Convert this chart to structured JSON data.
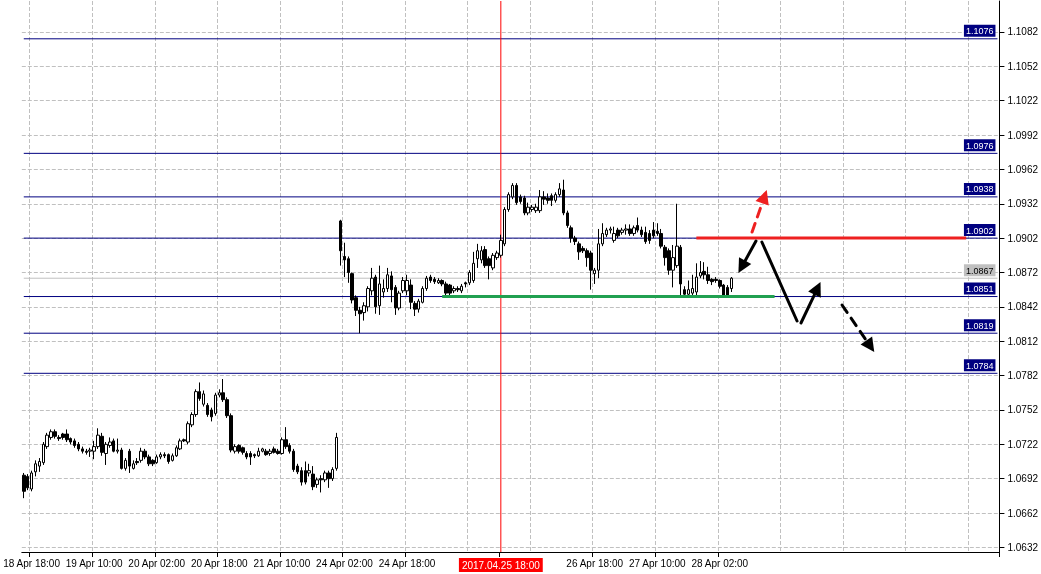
{
  "chart_data": {
    "type": "candlestick",
    "categories": [
      null,
      null,
      "18 Apr 18:00",
      null,
      null,
      null,
      null,
      null,
      null,
      null,
      null,
      null,
      null,
      null,
      null,
      null,
      null,
      null,
      "19 Apr 10:00",
      null,
      null,
      null,
      null,
      null,
      null,
      null,
      null,
      null,
      null,
      null,
      null,
      null,
      null,
      null,
      "20 Apr 02:00",
      null,
      null,
      null,
      null,
      null,
      null,
      null,
      null,
      null,
      null,
      null,
      null,
      null,
      null,
      null,
      "20 Apr 18:00",
      null,
      null,
      null,
      null,
      null,
      null,
      null,
      null,
      null,
      null,
      null,
      null,
      null,
      null,
      null,
      "21 Apr 10:00",
      null,
      null,
      null,
      null,
      null,
      null,
      null,
      null,
      null,
      null,
      null,
      null,
      null,
      null,
      null,
      "24 Apr 02:00",
      null,
      null,
      null,
      null,
      null,
      null,
      null,
      null,
      null,
      null,
      null,
      null,
      null,
      null,
      null,
      "24 Apr 18:00",
      null,
      null,
      null,
      null,
      null,
      null,
      null,
      null,
      null,
      null,
      null,
      null,
      null,
      null,
      null,
      null,
      null,
      null,
      null,
      null,
      null,
      null,
      null,
      "2017.04.25 18:00",
      null,
      null,
      null,
      null,
      null,
      null,
      null,
      null,
      null,
      null,
      null,
      null,
      null,
      null,
      null,
      null,
      null,
      null,
      null,
      null,
      null,
      null,
      null,
      "26 Apr 18:00",
      null,
      null,
      null,
      null,
      null,
      null,
      null,
      null,
      null,
      null,
      null,
      null,
      null,
      null,
      null,
      "27 Apr 10:00",
      null,
      null,
      null,
      null,
      null,
      null,
      null,
      null,
      null,
      null,
      null,
      null,
      null,
      null,
      null,
      "28 Apr 02:00",
      null,
      null,
      null,
      null,
      null,
      null,
      null,
      null,
      null,
      null,
      null,
      null,
      null,
      null,
      null,
      null,
      null,
      null,
      null,
      null,
      null,
      null,
      null,
      null,
      null,
      null,
      null,
      null,
      null,
      null,
      null,
      null,
      null,
      null,
      null,
      null,
      null,
      null,
      null,
      null,
      null,
      null,
      null,
      null,
      null,
      null,
      null,
      null,
      null,
      null,
      null,
      null,
      null,
      null,
      null,
      null,
      null,
      null,
      null,
      null,
      null,
      null,
      null,
      null,
      null,
      null,
      null,
      null,
      null,
      null,
      null
    ],
    "ohlc": [
      [
        1.0695,
        1.0697,
        1.0675,
        1.0681
      ],
      [
        1.0694,
        1.0696,
        1.0682,
        1.0684
      ],
      [
        1.0683,
        1.0699,
        1.0681,
        1.0697
      ],
      [
        1.0698,
        1.0708,
        1.0694,
        1.0705
      ],
      [
        1.0703,
        1.071,
        1.0698,
        1.0707
      ],
      [
        1.0706,
        1.0724,
        1.0704,
        1.0722
      ],
      [
        1.072,
        1.0732,
        1.0718,
        1.073
      ],
      [
        1.0728,
        1.0735,
        1.0726,
        1.0733
      ],
      [
        1.0733,
        1.0735,
        1.0727,
        1.0729
      ],
      [
        1.0728,
        1.073,
        1.0725,
        1.0727
      ],
      [
        1.0731,
        1.0732,
        1.0726,
        1.0728
      ],
      [
        1.0731,
        1.0735,
        1.0724,
        1.0726
      ],
      [
        1.0727,
        1.0728,
        1.0722,
        1.0724
      ],
      [
        1.0725,
        1.0727,
        1.0719,
        1.0721
      ],
      [
        1.0722,
        1.0724,
        1.0716,
        1.0718
      ],
      [
        1.0718,
        1.072,
        1.0714,
        1.0716
      ],
      [
        1.0716,
        1.0718,
        1.0713,
        1.0715
      ],
      [
        1.0716,
        1.0719,
        1.0711,
        1.0717
      ],
      [
        1.0716,
        1.0725,
        1.0709,
        1.072
      ],
      [
        1.072,
        1.0736,
        1.0718,
        1.073
      ],
      [
        1.0729,
        1.0732,
        1.0712,
        1.0715
      ],
      [
        1.0714,
        1.0724,
        1.0704,
        1.0722
      ],
      [
        1.0721,
        1.0728,
        1.0719,
        1.0724
      ],
      [
        1.0725,
        1.0727,
        1.0715,
        1.0716
      ],
      [
        1.0716,
        1.0727,
        1.0714,
        1.0717
      ],
      [
        1.0717,
        1.0719,
        1.07,
        1.0701
      ],
      [
        1.0701,
        1.071,
        1.0699,
        1.0708
      ],
      [
        1.0716,
        1.0718,
        1.0697,
        1.0703
      ],
      [
        1.0701,
        1.0708,
        1.07,
        1.0705
      ],
      [
        1.0707,
        1.071,
        1.0704,
        1.0706
      ],
      [
        1.0708,
        1.0719,
        1.0706,
        1.0716
      ],
      [
        1.0716,
        1.0718,
        1.0709,
        1.0711
      ],
      [
        1.0711,
        1.0713,
        1.0703,
        1.0705
      ],
      [
        1.0708,
        1.0709,
        1.0703,
        1.0705
      ],
      [
        1.0706,
        1.0713,
        1.0705,
        1.0711
      ],
      [
        1.0711,
        1.0715,
        1.0709,
        1.0713
      ],
      [
        1.0713,
        1.0715,
        1.071,
        1.0712
      ],
      [
        1.0713,
        1.0714,
        1.0705,
        1.0707
      ],
      [
        1.0708,
        1.0714,
        1.0707,
        1.0712
      ],
      [
        1.0712,
        1.0721,
        1.0711,
        1.0719
      ],
      [
        1.0718,
        1.0727,
        1.0717,
        1.0725
      ],
      [
        1.0726,
        1.0727,
        1.0724,
        1.0725
      ],
      [
        1.0724,
        1.0742,
        1.0722,
        1.074
      ],
      [
        1.0739,
        1.075,
        1.0737,
        1.0748
      ],
      [
        1.0748,
        1.077,
        1.0746,
        1.0768
      ],
      [
        1.0768,
        1.0776,
        1.076,
        1.0762
      ],
      [
        1.0757,
        1.0769,
        1.0755,
        1.0766
      ],
      [
        1.0756,
        1.0758,
        1.0746,
        1.0748
      ],
      [
        1.0752,
        1.0754,
        1.0742,
        1.0746
      ],
      [
        1.0749,
        1.0767,
        1.0747,
        1.0765
      ],
      [
        1.0765,
        1.077,
        1.0763,
        1.0767
      ],
      [
        1.0767,
        1.0779,
        1.0759,
        1.0761
      ],
      [
        1.0761,
        1.0763,
        1.0745,
        1.0747
      ],
      [
        1.0747,
        1.0749,
        1.0715,
        1.0717
      ],
      [
        1.0716,
        1.0722,
        1.0714,
        1.072
      ],
      [
        1.0721,
        1.0722,
        1.0714,
        1.0716
      ],
      [
        1.0719,
        1.072,
        1.0713,
        1.0715
      ],
      [
        1.0714,
        1.0716,
        1.0709,
        1.0711
      ],
      [
        1.0714,
        1.0716,
        1.0704,
        1.0711
      ],
      [
        1.0713,
        1.0714,
        1.071,
        1.0712
      ],
      [
        1.0712,
        1.0719,
        1.0711,
        1.0716
      ],
      [
        1.0716,
        1.0719,
        1.0715,
        1.0718
      ],
      [
        1.0716,
        1.0718,
        1.0712,
        1.0713
      ],
      [
        1.0714,
        1.0718,
        1.0712,
        1.0716
      ],
      [
        1.0718,
        1.072,
        1.0714,
        1.0715
      ],
      [
        1.0716,
        1.0718,
        1.0713,
        1.0714
      ],
      [
        1.0714,
        1.0728,
        1.0713,
        1.0726
      ],
      [
        1.0726,
        1.0737,
        1.0718,
        1.072
      ],
      [
        1.0721,
        1.0723,
        1.0714,
        1.0716
      ],
      [
        1.0716,
        1.0718,
        1.0698,
        1.07
      ],
      [
        1.0703,
        1.0705,
        1.0696,
        1.0698
      ],
      [
        1.0699,
        1.0702,
        1.0686,
        1.0689
      ],
      [
        1.0699,
        1.0707,
        1.0687,
        1.0689
      ],
      [
        1.0697,
        1.0705,
        1.0694,
        1.0699
      ],
      [
        1.0696,
        1.0703,
        1.0682,
        1.0685
      ],
      [
        1.0687,
        1.0693,
        1.0684,
        1.0691
      ],
      [
        1.0692,
        1.0695,
        1.068,
        1.0691
      ],
      [
        1.0691,
        1.0699,
        1.0689,
        1.0697
      ],
      [
        1.0697,
        1.0699,
        1.0684,
        1.0692
      ],
      [
        1.0692,
        1.0702,
        1.069,
        1.07
      ],
      [
        1.0701,
        1.0732,
        1.0699,
        1.0728
      ],
      [
        1.0917,
        1.0918,
        1.0878,
        1.0891
      ],
      [
        1.0886,
        1.0898,
        1.0868,
        1.0883
      ],
      [
        1.0884,
        1.0886,
        1.0863,
        1.0872
      ],
      [
        1.0871,
        1.0872,
        1.0845,
        1.0848
      ],
      [
        1.085,
        1.0852,
        1.0834,
        1.0839
      ],
      [
        1.0839,
        1.0842,
        1.0819,
        1.0836
      ],
      [
        1.0837,
        1.0846,
        1.083,
        1.0843
      ],
      [
        1.0842,
        1.086,
        1.0838,
        1.0858
      ],
      [
        1.0856,
        1.0876,
        1.0852,
        1.0867
      ],
      [
        1.0868,
        1.087,
        1.0836,
        1.0842
      ],
      [
        1.0843,
        1.0878,
        1.0835,
        1.0862
      ],
      [
        1.0855,
        1.0866,
        1.085,
        1.0858
      ],
      [
        1.0858,
        1.0876,
        1.0855,
        1.087
      ],
      [
        1.0869,
        1.0873,
        1.0846,
        1.0857
      ],
      [
        1.0859,
        1.0861,
        1.0835,
        1.0841
      ],
      [
        1.0841,
        1.0856,
        1.0839,
        1.0854
      ],
      [
        1.0856,
        1.0868,
        1.0854,
        1.0865
      ],
      [
        1.0856,
        1.087,
        1.0852,
        1.0865
      ],
      [
        1.0861,
        1.0866,
        1.084,
        1.0846
      ],
      [
        1.0845,
        1.0847,
        1.0834,
        1.084
      ],
      [
        1.084,
        1.0849,
        1.0837,
        1.0847
      ],
      [
        1.0846,
        1.086,
        1.0845,
        1.0858
      ],
      [
        1.0858,
        1.0869,
        1.0856,
        1.0867
      ],
      [
        1.0868,
        1.087,
        1.0863,
        1.0865
      ],
      [
        1.0866,
        1.0868,
        1.0862,
        1.0864
      ],
      [
        1.0863,
        1.0867,
        1.0862,
        1.0865
      ],
      [
        1.0865,
        1.0866,
        1.086,
        1.0862
      ],
      [
        1.0862,
        1.0864,
        1.0852,
        1.0854
      ],
      [
        1.0861,
        1.0862,
        1.0851,
        1.0854
      ],
      [
        1.0856,
        1.086,
        1.0854,
        1.0858
      ],
      [
        1.0858,
        1.086,
        1.0855,
        1.0857
      ],
      [
        1.0856,
        1.0862,
        1.0854,
        1.086
      ],
      [
        1.0863,
        1.0864,
        1.0859,
        1.0862
      ],
      [
        1.0863,
        1.0874,
        1.0861,
        1.0872
      ],
      [
        1.0865,
        1.089,
        1.0863,
        1.088
      ],
      [
        1.0884,
        1.0897,
        1.0876,
        1.0891
      ],
      [
        1.0883,
        1.0895,
        1.088,
        1.0891
      ],
      [
        1.0892,
        1.0895,
        1.0876,
        1.0878
      ],
      [
        1.0884,
        1.0886,
        1.0866,
        1.0878
      ],
      [
        1.0876,
        1.0889,
        1.0874,
        1.0887
      ],
      [
        1.0885,
        1.0891,
        1.0883,
        1.0889
      ],
      [
        1.0887,
        1.0905,
        1.0885,
        1.09
      ],
      [
        1.0897,
        1.0929,
        1.0895,
        1.0927
      ],
      [
        1.0927,
        1.0942,
        1.0925,
        1.094
      ],
      [
        1.0938,
        1.095,
        1.0936,
        1.0948
      ],
      [
        1.0948,
        1.095,
        1.0931,
        1.0933
      ],
      [
        1.0938,
        1.094,
        1.0932,
        1.0934
      ],
      [
        1.0937,
        1.0939,
        1.0922,
        1.0924
      ],
      [
        1.0924,
        1.0933,
        1.0922,
        1.0929
      ],
      [
        1.0927,
        1.0931,
        1.0925,
        1.0929
      ],
      [
        1.0926,
        1.0932,
        1.0924,
        1.0929
      ],
      [
        1.0926,
        1.0944,
        1.0924,
        1.0938
      ],
      [
        1.0938,
        1.0943,
        1.0931,
        1.0936
      ],
      [
        1.0937,
        1.0941,
        1.0932,
        1.0935
      ],
      [
        1.0939,
        1.0941,
        1.093,
        1.0935
      ],
      [
        1.0935,
        1.0942,
        1.0933,
        1.094
      ],
      [
        1.094,
        1.095,
        1.0938,
        1.0945
      ],
      [
        1.0944,
        1.0953,
        1.0922,
        1.0924
      ],
      [
        1.0924,
        1.0926,
        1.0911,
        1.0913
      ],
      [
        1.0911,
        1.0913,
        1.0898,
        1.0902
      ],
      [
        1.0902,
        1.0904,
        1.0896,
        1.0899
      ],
      [
        1.0897,
        1.0899,
        1.0883,
        1.089
      ],
      [
        1.0893,
        1.0895,
        1.0889,
        1.0891
      ],
      [
        1.0891,
        1.0893,
        1.0877,
        1.0885
      ],
      [
        1.0889,
        1.0891,
        1.0857,
        1.0874
      ],
      [
        1.0871,
        1.0876,
        1.0862,
        1.0874
      ],
      [
        1.0874,
        1.091,
        1.0867,
        1.0897
      ],
      [
        1.0897,
        1.0915,
        1.0895,
        1.0906
      ],
      [
        1.0905,
        1.0911,
        1.0903,
        1.0909
      ],
      [
        1.0909,
        1.0912,
        1.0906,
        1.091
      ],
      [
        1.09,
        1.0912,
        1.0898,
        1.0906
      ],
      [
        1.0909,
        1.0911,
        1.0902,
        1.0904
      ],
      [
        1.0907,
        1.0911,
        1.0905,
        1.0909
      ],
      [
        1.0909,
        1.0914,
        1.0905,
        1.091
      ],
      [
        1.091,
        1.0914,
        1.0904,
        1.0906
      ],
      [
        1.0906,
        1.0913,
        1.0904,
        1.0911
      ],
      [
        1.0913,
        1.092,
        1.0907,
        1.0909
      ],
      [
        1.0909,
        1.0912,
        1.0903,
        1.0905
      ],
      [
        1.0907,
        1.0912,
        1.0897,
        1.0899
      ],
      [
        1.0906,
        1.0909,
        1.0897,
        1.09
      ],
      [
        1.0909,
        1.0916,
        1.0902,
        1.0904
      ],
      [
        1.0908,
        1.0915,
        1.0904,
        1.0906
      ],
      [
        1.0906,
        1.091,
        1.0893,
        1.0895
      ],
      [
        1.0894,
        1.0896,
        1.0878,
        1.0885
      ],
      [
        1.0891,
        1.0893,
        1.087,
        1.0874
      ],
      [
        1.0874,
        1.0896,
        1.0859,
        1.0885
      ],
      [
        1.0878,
        1.0932,
        1.0876,
        1.0895
      ],
      [
        1.0894,
        1.0896,
        1.0851,
        1.0862
      ],
      [
        1.0857,
        1.086,
        1.0851,
        1.0853
      ],
      [
        1.0853,
        1.0865,
        1.0851,
        1.0857
      ],
      [
        1.0854,
        1.087,
        1.0852,
        1.0858
      ],
      [
        1.0855,
        1.088,
        1.0852,
        1.0868
      ],
      [
        1.0869,
        1.0882,
        1.0867,
        1.0872
      ],
      [
        1.0873,
        1.0881,
        1.0866,
        1.087
      ],
      [
        1.087,
        1.0877,
        1.0862,
        1.0865
      ],
      [
        1.0866,
        1.0867,
        1.0861,
        1.0864
      ],
      [
        1.0866,
        1.0868,
        1.0863,
        1.0865
      ],
      [
        1.0865,
        1.0866,
        1.0858,
        1.086
      ],
      [
        1.0861,
        1.0862,
        1.085,
        1.0852
      ],
      [
        1.0859,
        1.0861,
        1.085,
        1.0852
      ],
      [
        1.0858,
        1.0868,
        1.0855,
        1.0867
      ],
      null,
      null,
      null,
      null,
      null,
      null,
      null,
      null,
      null,
      null,
      null,
      null,
      null,
      null,
      null,
      null,
      null,
      null,
      null,
      null,
      null,
      null,
      null,
      null,
      null,
      null,
      null,
      null,
      null,
      null,
      null,
      null,
      null,
      null,
      null,
      null,
      null,
      null,
      null,
      null,
      null,
      null,
      null,
      null,
      null,
      null,
      null,
      null,
      null,
      null,
      null,
      null,
      null,
      null,
      null,
      null,
      null,
      null,
      null,
      null,
      null,
      null,
      null,
      null,
      null,
      null,
      null,
      null
    ],
    "series": [
      {
        "type": "line",
        "color": "#ee2020",
        "values": [
          null,
          null,
          null,
          null,
          null,
          null,
          null,
          null,
          null,
          null,
          null,
          null,
          null,
          null,
          null,
          null,
          null,
          null,
          null,
          null,
          null,
          null,
          null,
          null,
          null,
          null,
          null,
          null,
          null,
          null,
          null,
          null,
          null,
          null,
          null,
          null,
          null,
          null,
          null,
          null,
          null,
          null,
          null,
          null,
          null,
          null,
          null,
          null,
          null,
          null,
          null,
          null,
          null,
          null,
          null,
          null,
          null,
          null,
          null,
          null,
          null,
          null,
          null,
          null,
          null,
          null,
          null,
          null,
          null,
          null,
          null,
          null,
          null,
          null,
          null,
          null,
          null,
          null,
          null,
          null,
          null,
          null,
          null,
          null,
          null,
          null,
          null,
          null,
          null,
          null,
          null,
          null,
          null,
          null,
          null,
          null,
          null,
          null,
          null,
          null,
          null,
          null,
          null,
          null,
          null,
          null,
          null,
          null,
          null,
          null,
          null,
          null,
          null,
          null,
          null,
          null,
          null,
          null,
          null,
          null,
          null,
          null,
          null,
          null,
          null,
          null,
          null,
          null,
          null,
          null,
          null,
          null,
          null,
          null,
          null,
          null,
          null,
          null,
          null,
          null,
          null,
          null,
          null,
          null,
          null,
          null,
          null,
          null,
          null,
          null,
          null,
          null,
          null,
          null,
          null,
          null,
          null,
          null,
          null,
          null,
          null,
          null,
          null,
          null,
          null,
          null,
          null,
          null,
          null,
          null,
          null,
          null,
          1.0902,
          1.0902,
          1.0902,
          1.0902,
          1.0902,
          1.0902,
          1.0902,
          1.0902,
          1.0902,
          1.0902,
          1.0902,
          1.0902,
          1.0902,
          1.0902,
          1.0902,
          1.0902,
          1.0902,
          1.0902,
          1.0902,
          1.0902,
          1.0902,
          1.0902,
          1.0902,
          1.0902,
          1.0902,
          1.0902,
          1.0902,
          1.0902,
          1.0902,
          1.0902,
          1.0902,
          1.0902,
          1.0902,
          1.0902,
          1.0902,
          1.0902,
          1.0902,
          1.0902,
          1.0902,
          1.0902,
          1.0902,
          1.0902,
          1.0902,
          1.0902,
          1.0902,
          1.0902,
          1.0902,
          1.0902,
          1.0902,
          1.0902,
          1.0902,
          1.0902,
          1.0902,
          1.0902,
          1.0902,
          1.0902,
          1.0902,
          1.0902,
          1.0902,
          1.0902,
          1.0902,
          1.0902,
          1.0902,
          1.0902,
          1.0902,
          1.0902,
          1.0902,
          1.0902,
          1.0902,
          1.0902,
          null,
          null,
          null,
          null,
          null,
          null,
          null,
          null
        ]
      },
      {
        "type": "line",
        "color": "#20a050",
        "values": [
          null,
          null,
          null,
          null,
          null,
          null,
          null,
          null,
          null,
          null,
          null,
          null,
          null,
          null,
          null,
          null,
          null,
          null,
          null,
          null,
          null,
          null,
          null,
          null,
          null,
          null,
          null,
          null,
          null,
          null,
          null,
          null,
          null,
          null,
          null,
          null,
          null,
          null,
          null,
          null,
          null,
          null,
          null,
          null,
          null,
          null,
          null,
          null,
          null,
          null,
          null,
          null,
          null,
          null,
          null,
          null,
          null,
          null,
          null,
          null,
          null,
          null,
          null,
          null,
          null,
          null,
          null,
          null,
          null,
          null,
          null,
          null,
          null,
          null,
          null,
          null,
          null,
          null,
          null,
          null,
          null,
          null,
          null,
          null,
          null,
          null,
          null,
          null,
          null,
          null,
          null,
          null,
          null,
          null,
          null,
          null,
          null,
          null,
          null,
          null,
          null,
          null,
          null,
          null,
          null,
          null,
          null,
          1.0851,
          1.0851,
          1.0851,
          1.0851,
          1.0851,
          1.0851,
          1.0851,
          1.0851,
          1.0851,
          1.0851,
          1.0851,
          1.0851,
          1.0851,
          1.0851,
          1.0851,
          1.0851,
          1.0851,
          1.0851,
          1.0851,
          1.0851,
          1.0851,
          1.0851,
          1.0851,
          1.0851,
          1.0851,
          1.0851,
          1.0851,
          1.0851,
          1.0851,
          1.0851,
          1.0851,
          1.0851,
          1.0851,
          1.0851,
          1.0851,
          1.0851,
          1.0851,
          1.0851,
          1.0851,
          1.0851,
          1.0851,
          1.0851,
          1.0851,
          1.0851,
          1.0851,
          1.0851,
          1.0851,
          1.0851,
          1.0851,
          1.0851,
          1.0851,
          1.0851,
          1.0851,
          1.0851,
          1.0851,
          1.0851,
          1.0851,
          1.0851,
          1.0851,
          1.0851,
          1.0851,
          1.0851,
          1.0851,
          1.0851,
          1.0851,
          1.0851,
          1.0851,
          1.0851,
          1.0851,
          1.0851,
          1.0851,
          1.0851,
          1.0851,
          1.0851,
          1.0851,
          1.0851,
          1.0851,
          1.0851,
          1.0851,
          1.0851,
          1.0851,
          1.0851,
          1.0851,
          1.0851,
          1.0851,
          1.0851,
          null,
          null,
          null,
          null,
          null,
          null,
          null,
          null,
          null,
          null,
          null,
          null,
          null,
          null,
          null,
          null,
          null,
          null,
          null,
          null,
          null,
          null,
          null,
          null,
          null,
          null,
          null,
          null,
          null,
          null,
          null,
          null,
          null,
          null,
          null,
          null,
          null,
          null,
          null,
          null,
          null,
          null,
          null,
          null,
          null,
          null,
          null,
          null,
          null,
          null,
          null,
          null,
          null,
          null,
          null,
          null,
          null
        ]
      }
    ],
    "ylim": [
      1.0628,
      1.1109
    ],
    "yticks": [
      1.0632,
      1.0662,
      1.0692,
      1.0722,
      1.0752,
      1.0782,
      1.0812,
      1.0842,
      1.0872,
      1.0902,
      1.0932,
      1.0962,
      1.0992,
      1.1022,
      1.1052,
      1.1082
    ],
    "grid": true,
    "ref_lines": [
      {
        "axis": "y",
        "value": 1.1076,
        "label": "1.1076",
        "color": "#000080"
      },
      {
        "axis": "y",
        "value": 1.0976,
        "label": "1.0976",
        "color": "#000080"
      },
      {
        "axis": "y",
        "value": 1.0938,
        "label": "1.0938",
        "color": "#000080"
      },
      {
        "axis": "y",
        "value": 1.0902,
        "label": "1.0902",
        "color": "#000080"
      },
      {
        "axis": "y",
        "value": 1.0867,
        "label": "1.0867",
        "color": "#c0c0c0"
      },
      {
        "axis": "y",
        "value": 1.0851,
        "label": "1.0851",
        "color": "#000080"
      },
      {
        "axis": "y",
        "value": 1.0819,
        "label": "1.0819",
        "color": "#000080"
      },
      {
        "axis": "y",
        "value": 1.0784,
        "label": "1.0784",
        "color": "#000080"
      },
      {
        "axis": "x",
        "value": "2017.04.25 18:00",
        "color": "#ff0000"
      }
    ]
  }
}
